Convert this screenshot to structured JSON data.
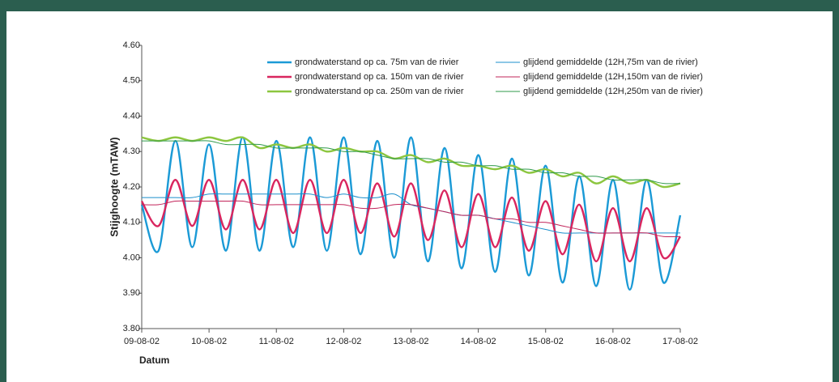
{
  "chart_data": {
    "type": "line",
    "y_label": "Stijghoogte (mTAW)",
    "x_label": "Datum",
    "x": [
      0,
      0.25,
      0.5,
      0.75,
      1,
      1.25,
      1.5,
      1.75,
      2,
      2.25,
      2.5,
      2.75,
      3,
      3.25,
      3.5,
      3.75,
      4,
      4.25,
      4.5,
      4.75,
      5,
      5.25,
      5.5,
      5.75,
      6,
      6.25,
      6.5,
      6.75,
      7,
      7.25,
      7.5,
      7.75,
      8
    ],
    "xlim": [
      0,
      8
    ],
    "xticks": [
      {
        "value": 0,
        "label": "09-08-02"
      },
      {
        "value": 1,
        "label": "10-08-02"
      },
      {
        "value": 2,
        "label": "11-08-02"
      },
      {
        "value": 3,
        "label": "12-08-02"
      },
      {
        "value": 4,
        "label": "13-08-02"
      },
      {
        "value": 5,
        "label": "14-08-02"
      },
      {
        "value": 6,
        "label": "15-08-02"
      },
      {
        "value": 7,
        "label": "16-08-02"
      },
      {
        "value": 8,
        "label": "17-08-02"
      }
    ],
    "ylim": [
      3.8,
      4.6
    ],
    "yticks": [
      {
        "value": 3.8,
        "label": "3.80"
      },
      {
        "value": 3.9,
        "label": "3.90"
      },
      {
        "value": 4.0,
        "label": "4.00"
      },
      {
        "value": 4.1,
        "label": "4.10"
      },
      {
        "value": 4.2,
        "label": "4.20"
      },
      {
        "value": 4.3,
        "label": "4.30"
      },
      {
        "value": 4.4,
        "label": "4.40"
      },
      {
        "value": 4.5,
        "label": "4.50"
      },
      {
        "value": 4.6,
        "label": "4.60"
      }
    ],
    "series": [
      {
        "name": "grondwaterstand op ca. 75m van de rivier",
        "color": "#1b9ad6",
        "values": [
          4.15,
          4.02,
          4.33,
          4.03,
          4.32,
          4.02,
          4.34,
          4.02,
          4.33,
          4.03,
          4.34,
          4.02,
          4.34,
          4.01,
          4.33,
          4.0,
          4.34,
          3.99,
          4.31,
          3.97,
          4.29,
          3.96,
          4.28,
          3.95,
          4.26,
          3.93,
          4.23,
          3.92,
          4.22,
          3.91,
          4.22,
          3.93,
          4.12
        ]
      },
      {
        "name": "grondwaterstand op ca. 150m van de rivier",
        "color": "#d9265f",
        "values": [
          4.16,
          4.09,
          4.22,
          4.09,
          4.22,
          4.08,
          4.22,
          4.08,
          4.22,
          4.07,
          4.22,
          4.07,
          4.22,
          4.07,
          4.21,
          4.06,
          4.21,
          4.05,
          4.19,
          4.03,
          4.18,
          4.03,
          4.17,
          4.02,
          4.16,
          4.01,
          4.15,
          3.99,
          4.14,
          3.99,
          4.14,
          4.0,
          4.06
        ]
      },
      {
        "name": "grondwaterstand op ca. 250m van de rivier",
        "color": "#8cc63f",
        "values": [
          4.34,
          4.33,
          4.34,
          4.33,
          4.34,
          4.33,
          4.34,
          4.31,
          4.32,
          4.31,
          4.32,
          4.3,
          4.31,
          4.3,
          4.3,
          4.28,
          4.29,
          4.27,
          4.28,
          4.26,
          4.26,
          4.25,
          4.26,
          4.24,
          4.25,
          4.23,
          4.24,
          4.21,
          4.23,
          4.21,
          4.22,
          4.2,
          4.21
        ]
      },
      {
        "name": "glijdend gemiddelde (12H,75m van de rivier)",
        "color": "#1b8fcc",
        "values": [
          4.17,
          4.17,
          4.17,
          4.17,
          4.18,
          4.18,
          4.18,
          4.18,
          4.18,
          4.18,
          4.18,
          4.17,
          4.18,
          4.17,
          4.17,
          4.18,
          4.15,
          4.14,
          4.13,
          4.12,
          4.12,
          4.11,
          4.1,
          4.09,
          4.08,
          4.07,
          4.07,
          4.07,
          4.07,
          4.07,
          4.07,
          4.07,
          4.07
        ]
      },
      {
        "name": "glijdend gemiddelde (12H,150m van de rivier)",
        "color": "#c2245a",
        "values": [
          4.15,
          4.15,
          4.16,
          4.16,
          4.16,
          4.16,
          4.16,
          4.15,
          4.15,
          4.15,
          4.15,
          4.15,
          4.15,
          4.14,
          4.14,
          4.15,
          4.15,
          4.14,
          4.13,
          4.12,
          4.12,
          4.11,
          4.11,
          4.1,
          4.1,
          4.09,
          4.08,
          4.07,
          4.07,
          4.07,
          4.07,
          4.06,
          4.06
        ]
      },
      {
        "name": "glijdend gemiddelde (12H,250m van de rivier)",
        "color": "#2f9a4a",
        "values": [
          4.33,
          4.33,
          4.33,
          4.33,
          4.33,
          4.32,
          4.32,
          4.32,
          4.31,
          4.31,
          4.31,
          4.31,
          4.3,
          4.3,
          4.29,
          4.28,
          4.28,
          4.28,
          4.27,
          4.27,
          4.26,
          4.26,
          4.25,
          4.25,
          4.24,
          4.24,
          4.23,
          4.23,
          4.22,
          4.22,
          4.22,
          4.21,
          4.21
        ]
      }
    ]
  }
}
